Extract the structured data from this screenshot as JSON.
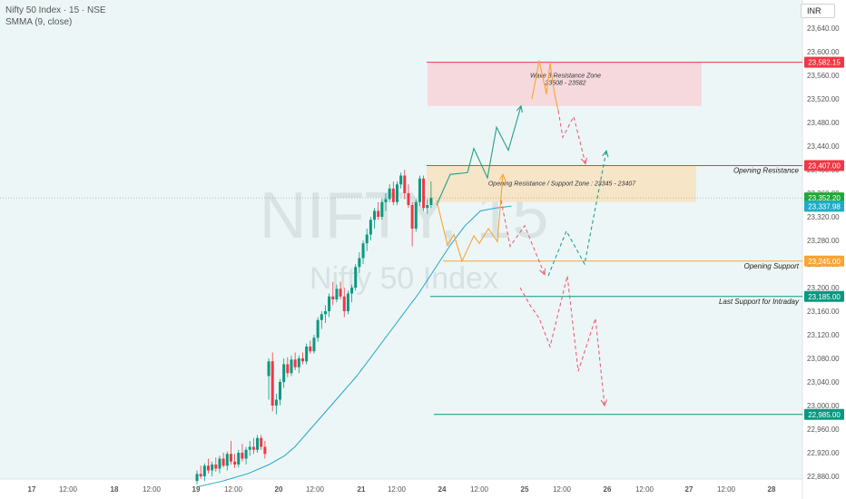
{
  "header": {
    "title": "Nifty 50 Index · 15 · NSE",
    "indicator": "SMMA (9, close)"
  },
  "currency_button": "INR",
  "watermark": {
    "symbol": "NIFTY, 15",
    "name": "Nifty 50 Index"
  },
  "colors": {
    "bull": "#089981",
    "bear": "#f23645",
    "smma": "#22a6c8",
    "resistance_zone": "#f5d6da",
    "support_zone": "#f7e3c3",
    "up_path": "#22a08f",
    "orange_path": "#f7a534",
    "down_path": "#ef5f7a"
  },
  "chart_data": {
    "type": "candlestick",
    "y_axis": {
      "range": [
        22860,
        23660
      ],
      "ticks": [
        "23,640.00",
        "23,600.00",
        "23,560.00",
        "23,520.00",
        "23,480.00",
        "23,440.00",
        "23,400.00",
        "23,360.00",
        "23,320.00",
        "23,280.00",
        "23,240.00",
        "23,200.00",
        "23,160.00",
        "23,120.00",
        "23,080.00",
        "23,040.00",
        "23,000.00",
        "22,960.00",
        "22,920.00",
        "22,880.00"
      ]
    },
    "x_axis": {
      "ticks": [
        "17",
        "12:00",
        "18",
        "12:00",
        "19",
        "12:00",
        "20",
        "12:00",
        "21",
        "12:00",
        "24",
        "12:00",
        "25",
        "12:00",
        "26",
        "12:00",
        "27",
        "12:00",
        "28"
      ]
    },
    "price_labels": [
      {
        "text": "23,582.15",
        "value": 23582.15,
        "color": "#f23645"
      },
      {
        "text": "23,407.00",
        "value": 23407,
        "color": "#f23645"
      },
      {
        "text": "23,352.20",
        "value": 23352.2,
        "color": "#1fa838"
      },
      {
        "text": "23,337.98",
        "value": 23337.98,
        "color": "#1eadc8"
      },
      {
        "text": "23,245.00",
        "value": 23245,
        "color": "#f7a534"
      },
      {
        "text": "23,185.00",
        "value": 23185,
        "color": "#089981"
      },
      {
        "text": "22,985.00",
        "value": 22985,
        "color": "#089981"
      }
    ],
    "levels": [
      {
        "value": 23582.15,
        "color": "#f23645",
        "label": ""
      },
      {
        "value": 23407,
        "color": "#f23645",
        "label": "Opening Resistance"
      },
      {
        "value": 23245,
        "color": "#f7a534",
        "label": "Opening Support"
      },
      {
        "value": 23185,
        "color": "#089981",
        "label": "Last Support for Intraday"
      },
      {
        "value": 22985,
        "color": "#089981",
        "label": ""
      }
    ],
    "zones": [
      {
        "from": 23508,
        "to": 23582,
        "fill": "#f5d6da",
        "title": "Wave 3 Resistance Zone",
        "subtitle": "23508 - 23582"
      },
      {
        "from": 23345,
        "to": 23407,
        "fill": "#f7e3c3",
        "title": "Opening Resistance / Support Zone :  23345 - 23407",
        "subtitle": ""
      }
    ],
    "candles": [
      [
        22872,
        22890,
        22866,
        22884
      ],
      [
        22884,
        22898,
        22876,
        22880
      ],
      [
        22880,
        22902,
        22872,
        22898
      ],
      [
        22898,
        22910,
        22885,
        22890
      ],
      [
        22890,
        22905,
        22880,
        22900
      ],
      [
        22900,
        22912,
        22888,
        22893
      ],
      [
        22893,
        22915,
        22885,
        22910
      ],
      [
        22910,
        22920,
        22895,
        22898
      ],
      [
        22898,
        22922,
        22890,
        22918
      ],
      [
        22918,
        22940,
        22900,
        22905
      ],
      [
        22905,
        22918,
        22894,
        22900
      ],
      [
        22900,
        22925,
        22895,
        22920
      ],
      [
        22920,
        22935,
        22905,
        22910
      ],
      [
        22910,
        22930,
        22900,
        22925
      ],
      [
        22925,
        22940,
        22915,
        22930
      ],
      [
        22930,
        22945,
        22918,
        22925
      ],
      [
        22925,
        22950,
        22920,
        22945
      ],
      [
        22945,
        22950,
        22925,
        22930
      ],
      [
        22930,
        22940,
        22910,
        22918
      ],
      [
        23050,
        23080,
        23010,
        23075
      ],
      [
        23075,
        23090,
        22990,
        23000
      ],
      [
        23000,
        23020,
        22985,
        23010
      ],
      [
        23010,
        23045,
        23000,
        23040
      ],
      [
        23040,
        23080,
        23030,
        23070
      ],
      [
        23070,
        23082,
        23048,
        23055
      ],
      [
        23055,
        23085,
        23050,
        23078
      ],
      [
        23078,
        23090,
        23060,
        23065
      ],
      [
        23065,
        23085,
        23055,
        23080
      ],
      [
        23080,
        23090,
        23070,
        23075
      ],
      [
        23075,
        23105,
        23070,
        23100
      ],
      [
        23100,
        23110,
        23088,
        23092
      ],
      [
        23092,
        23120,
        23088,
        23115
      ],
      [
        23115,
        23150,
        23108,
        23145
      ],
      [
        23145,
        23160,
        23130,
        23155
      ],
      [
        23155,
        23170,
        23140,
        23160
      ],
      [
        23160,
        23190,
        23150,
        23185
      ],
      [
        23185,
        23210,
        23170,
        23180
      ],
      [
        23180,
        23205,
        23175,
        23198
      ],
      [
        23198,
        23210,
        23180,
        23185
      ],
      [
        23185,
        23200,
        23150,
        23160
      ],
      [
        23160,
        23195,
        23155,
        23190
      ],
      [
        23190,
        23205,
        23175,
        23200
      ],
      [
        23200,
        23240,
        23195,
        23235
      ],
      [
        23235,
        23260,
        23225,
        23250
      ],
      [
        23250,
        23280,
        23240,
        23275
      ],
      [
        23275,
        23300,
        23262,
        23290
      ],
      [
        23290,
        23320,
        23280,
        23315
      ],
      [
        23315,
        23335,
        23300,
        23330
      ],
      [
        23330,
        23345,
        23315,
        23320
      ],
      [
        23320,
        23350,
        23315,
        23345
      ],
      [
        23345,
        23360,
        23330,
        23350
      ],
      [
        23350,
        23375,
        23345,
        23368
      ],
      [
        23368,
        23380,
        23340,
        23345
      ],
      [
        23345,
        23380,
        23340,
        23375
      ],
      [
        23375,
        23395,
        23368,
        23390
      ],
      [
        23390,
        23400,
        23350,
        23360
      ],
      [
        23360,
        23375,
        23335,
        23340
      ],
      [
        23340,
        23345,
        23270,
        23300
      ],
      [
        23300,
        23350,
        23295,
        23345
      ],
      [
        23345,
        23390,
        23338,
        23385
      ],
      [
        23385,
        23390,
        23330,
        23335
      ],
      [
        23335,
        23350,
        23325,
        23340
      ],
      [
        23340,
        23380,
        23335,
        23352.2
      ]
    ],
    "smma": [
      [
        0,
        22862
      ],
      [
        5,
        22872
      ],
      [
        10,
        22885
      ],
      [
        14,
        22900
      ],
      [
        17,
        22915
      ],
      [
        19,
        22930
      ],
      [
        22,
        22960
      ],
      [
        25,
        22990
      ],
      [
        28,
        23020
      ],
      [
        31,
        23050
      ],
      [
        34,
        23085
      ],
      [
        37,
        23120
      ],
      [
        40,
        23155
      ],
      [
        43,
        23190
      ],
      [
        46,
        23230
      ],
      [
        49,
        23270
      ],
      [
        52,
        23305
      ],
      [
        55,
        23330
      ],
      [
        58,
        23335
      ],
      [
        61,
        23337.98
      ]
    ],
    "paths": [
      {
        "name": "teal-up",
        "color": "#22a08f",
        "dashed": false,
        "arrow": true,
        "points": [
          [
            481,
            23340
          ],
          [
            496,
            23392
          ],
          [
            515,
            23395
          ],
          [
            522,
            23436
          ],
          [
            537,
            23386
          ],
          [
            547,
            23472
          ],
          [
            560,
            23433
          ],
          [
            574,
            23508
          ]
        ]
      },
      {
        "name": "orange-down-up",
        "color": "#f7a534",
        "dashed": false,
        "arrow": true,
        "points": [
          [
            481,
            23348
          ],
          [
            493,
            23272
          ],
          [
            500,
            23290
          ],
          [
            509,
            23245
          ],
          [
            522,
            23288
          ],
          [
            528,
            23275
          ],
          [
            538,
            23300
          ],
          [
            548,
            23278
          ],
          [
            554,
            23392
          ]
        ]
      },
      {
        "name": "orange-top",
        "color": "#f7a534",
        "dashed": false,
        "arrow": false,
        "points": [
          [
            586,
            23520
          ],
          [
            594,
            23585
          ],
          [
            602,
            23528
          ],
          [
            606,
            23580
          ],
          [
            611,
            23528
          ],
          [
            615,
            23500
          ]
        ]
      },
      {
        "name": "red-top-down",
        "color": "#ef5f7a",
        "dashed": true,
        "arrow": true,
        "points": [
          [
            615,
            23500
          ],
          [
            620,
            23455
          ],
          [
            632,
            23490
          ],
          [
            645,
            23410
          ]
        ]
      },
      {
        "name": "green-dashed",
        "color": "#22a08f",
        "dashed": true,
        "arrow": true,
        "points": [
          [
            604,
            23220
          ],
          [
            624,
            23296
          ],
          [
            644,
            23240
          ],
          [
            668,
            23432
          ]
        ]
      },
      {
        "name": "red-mid",
        "color": "#ef5f7a",
        "dashed": true,
        "arrow": true,
        "points": [
          [
            552,
            23348
          ],
          [
            562,
            23270
          ],
          [
            578,
            23305
          ],
          [
            600,
            23222
          ]
        ]
      },
      {
        "name": "red-bottom",
        "color": "#ef5f7a",
        "dashed": true,
        "arrow": true,
        "points": [
          [
            573,
            23200
          ],
          [
            584,
            23170
          ],
          [
            594,
            23148
          ],
          [
            606,
            23100
          ],
          [
            625,
            23220
          ],
          [
            637,
            23058
          ],
          [
            656,
            23148
          ],
          [
            666,
            23000
          ]
        ]
      }
    ]
  }
}
